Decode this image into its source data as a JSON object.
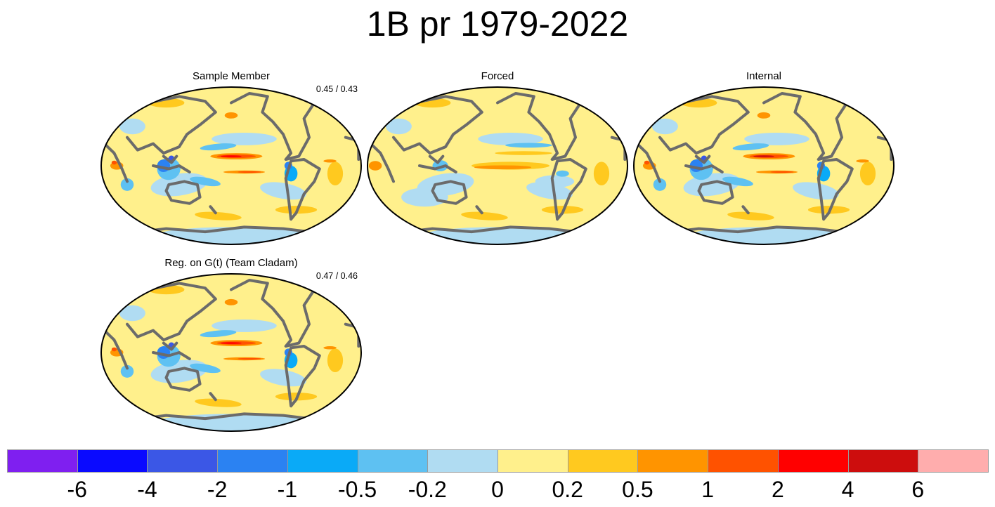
{
  "title": "1B pr 1979-2022",
  "panels": [
    {
      "id": "sample",
      "title": "Sample Member",
      "score": "0.45 / 0.43",
      "pattern": "member"
    },
    {
      "id": "forced",
      "title": "Forced",
      "score": "",
      "pattern": "forced"
    },
    {
      "id": "internal",
      "title": "Internal",
      "score": "",
      "pattern": "internal"
    },
    {
      "id": "team",
      "title": "Reg. on G(t) (Team Cladam)",
      "score": "0.47 / 0.46",
      "pattern": "member"
    }
  ],
  "colorbar": {
    "colors": [
      "#7f1ff0",
      "#0a0aff",
      "#3b57e6",
      "#2b82f2",
      "#0aaaf7",
      "#5ec1f2",
      "#b0dcf2",
      "#fff08c",
      "#ffc91f",
      "#ff9400",
      "#ff5200",
      "#ff0000",
      "#cd0d0d",
      "#ffadad"
    ],
    "labels": [
      "-6",
      "-4",
      "-2",
      "-1",
      "-0.5",
      "-0.2",
      "0",
      "0.2",
      "0.5",
      "1",
      "2",
      "4",
      "6"
    ]
  },
  "map_legend": {
    "coastline_color": "#6b6b6b",
    "background_fill": "#fff08c"
  }
}
